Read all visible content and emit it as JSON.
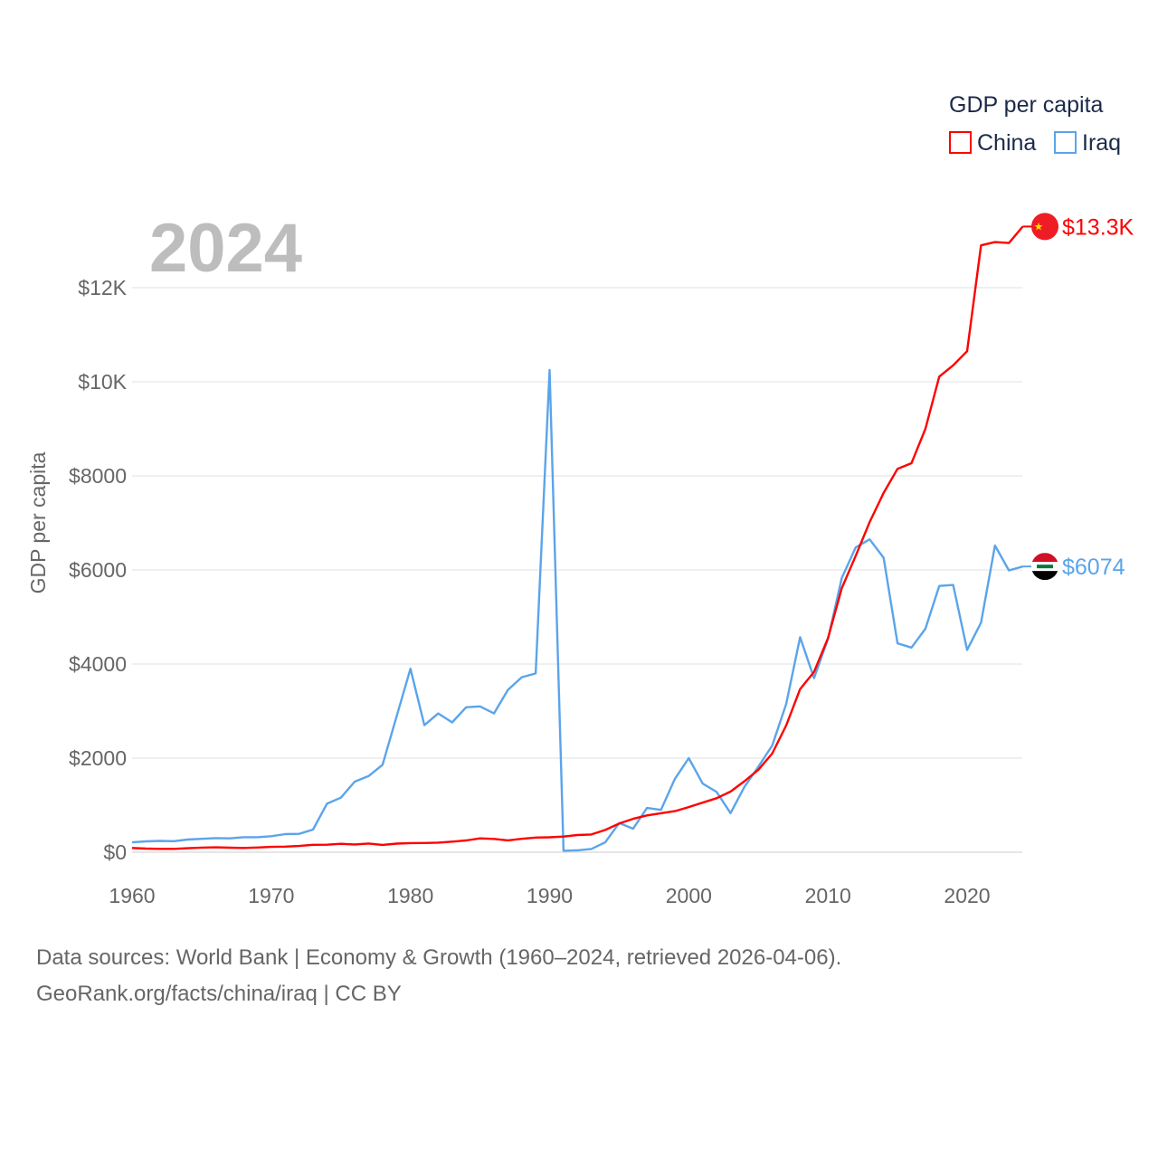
{
  "chart_data": {
    "type": "line",
    "title": "GDP per capita",
    "year_label": "2024",
    "ylabel": "GDP per capita",
    "xlabel": "",
    "xlim": [
      1960,
      2024
    ],
    "ylim": [
      0,
      12000
    ],
    "x_ticks": [
      1960,
      1970,
      1980,
      1990,
      2000,
      2010,
      2020
    ],
    "x_tick_labels": [
      "1960",
      "1970",
      "1980",
      "1990",
      "2000",
      "2010",
      "2020"
    ],
    "y_ticks": [
      0,
      2000,
      4000,
      6000,
      8000,
      10000,
      12000
    ],
    "y_tick_labels": [
      "$0",
      "$2000",
      "$4000",
      "$6000",
      "$8000",
      "$10K",
      "$12K"
    ],
    "grid": true,
    "legend_position": "top-right",
    "x": [
      1960,
      1961,
      1962,
      1963,
      1964,
      1965,
      1966,
      1967,
      1968,
      1969,
      1970,
      1971,
      1972,
      1973,
      1974,
      1975,
      1976,
      1977,
      1978,
      1979,
      1980,
      1981,
      1982,
      1983,
      1984,
      1985,
      1986,
      1987,
      1988,
      1989,
      1990,
      1991,
      1992,
      1993,
      1994,
      1995,
      1996,
      1997,
      1998,
      1999,
      2000,
      2001,
      2002,
      2003,
      2004,
      2005,
      2006,
      2007,
      2008,
      2009,
      2010,
      2011,
      2012,
      2013,
      2014,
      2015,
      2016,
      2017,
      2018,
      2019,
      2020,
      2021,
      2022,
      2023,
      2024
    ],
    "series": [
      {
        "name": "China",
        "color": "#ff0000",
        "end_label": "$13.3K",
        "flag": "china-flag",
        "values": [
          90,
          76,
          71,
          72,
          85,
          98,
          104,
          97,
          91,
          100,
          113,
          119,
          132,
          157,
          160,
          178,
          165,
          185,
          156,
          183,
          195,
          197,
          203,
          225,
          250,
          294,
          282,
          252,
          284,
          311,
          318,
          333,
          366,
          377,
          473,
          610,
          709,
          782,
          829,
          873,
          959,
          1053,
          1149,
          1289,
          1509,
          1753,
          2099,
          2694,
          3468,
          3832,
          4550,
          5614,
          6301,
          7020,
          7636,
          8150,
          8270,
          9000,
          10110,
          10350,
          10650,
          12900,
          12970,
          12950,
          13300
        ]
      },
      {
        "name": "Iraq",
        "color": "#5ba4ea",
        "end_label": "$6074",
        "flag": "iraq-flag",
        "values": [
          210,
          230,
          240,
          235,
          270,
          285,
          300,
          295,
          320,
          320,
          340,
          385,
          390,
          480,
          1030,
          1160,
          1500,
          1620,
          1860,
          2880,
          3900,
          2700,
          2950,
          2760,
          3080,
          3100,
          2950,
          3450,
          3720,
          3800,
          10250,
          30,
          40,
          70,
          210,
          620,
          500,
          940,
          900,
          1560,
          2000,
          1460,
          1280,
          830,
          1390,
          1820,
          2270,
          3150,
          4570,
          3700,
          4530,
          5830,
          6480,
          6650,
          6260,
          4440,
          4350,
          4750,
          5660,
          5680,
          4300,
          4880,
          6520,
          5990,
          6074
        ]
      }
    ]
  },
  "footer": {
    "line1": "Data sources: World Bank | Economy & Growth (1960–2024, retrieved 2026-04-06).",
    "line2": "GeoRank.org/facts/china/iraq | CC BY"
  }
}
